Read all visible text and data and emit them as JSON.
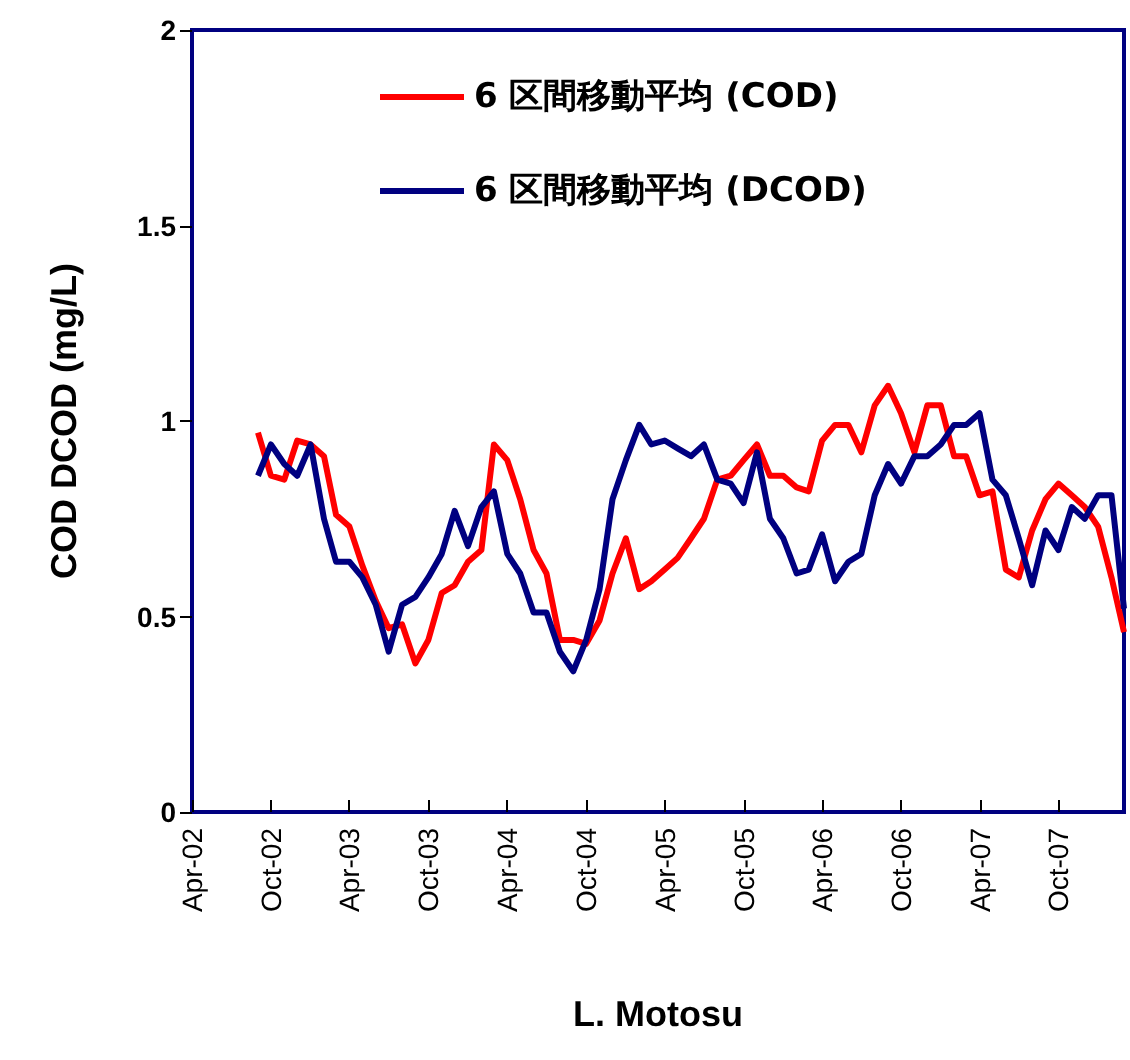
{
  "chart_data": {
    "type": "line",
    "xlabel": "L. Motosu",
    "ylabel": "COD DCOD (mg/L)",
    "x": [
      "2002-09",
      "2002-10",
      "2002-11",
      "2002-12",
      "2003-01",
      "2003-02",
      "2003-03",
      "2003-04",
      "2003-05",
      "2003-06",
      "2003-07",
      "2003-08",
      "2003-09",
      "2003-10",
      "2003-11",
      "2003-12",
      "2004-01",
      "2004-02",
      "2004-03",
      "2004-04",
      "2004-05",
      "2004-06",
      "2004-07",
      "2004-08",
      "2004-09",
      "2004-10",
      "2004-11",
      "2004-12",
      "2005-01",
      "2005-02",
      "2005-03",
      "2005-04",
      "2005-05",
      "2005-06",
      "2005-07",
      "2005-08",
      "2005-09",
      "2005-10",
      "2005-11",
      "2005-12",
      "2006-01",
      "2006-02",
      "2006-03",
      "2006-04",
      "2006-05",
      "2006-06",
      "2006-07",
      "2006-08",
      "2006-09",
      "2006-10",
      "2006-11",
      "2006-12",
      "2007-01",
      "2007-02",
      "2007-03",
      "2007-04",
      "2007-05",
      "2007-06",
      "2007-07",
      "2007-08",
      "2007-09",
      "2007-10",
      "2007-11",
      "2007-12",
      "2008-01",
      "2008-02",
      "2008-03"
    ],
    "series": [
      {
        "name": "6 区間移動平均 (COD)",
        "color": "#ff0000",
        "values": [
          0.97,
          0.86,
          0.85,
          0.95,
          0.94,
          0.91,
          0.76,
          0.73,
          0.63,
          0.54,
          0.47,
          0.48,
          0.38,
          0.44,
          0.56,
          0.58,
          0.64,
          0.67,
          0.94,
          0.9,
          0.8,
          0.67,
          0.61,
          0.44,
          0.44,
          0.43,
          0.49,
          0.61,
          0.7,
          0.57,
          0.59,
          0.62,
          0.65,
          0.7,
          0.75,
          0.85,
          0.86,
          0.9,
          0.94,
          0.86,
          0.86,
          0.83,
          0.82,
          0.95,
          0.99,
          0.99,
          0.92,
          1.04,
          1.09,
          1.02,
          0.92,
          1.04,
          1.04,
          0.91,
          0.91,
          0.81,
          0.82,
          0.62,
          0.6,
          0.72,
          0.8,
          0.84,
          0.81,
          0.78,
          0.73,
          0.6,
          0.46
        ]
      },
      {
        "name": "6 区間移動平均 (DCOD)",
        "color": "#000080",
        "values": [
          0.86,
          0.94,
          0.89,
          0.86,
          0.94,
          0.75,
          0.64,
          0.64,
          0.6,
          0.53,
          0.41,
          0.53,
          0.55,
          0.6,
          0.66,
          0.77,
          0.68,
          0.78,
          0.82,
          0.66,
          0.61,
          0.51,
          0.51,
          0.41,
          0.36,
          0.44,
          0.57,
          0.8,
          0.9,
          0.99,
          0.94,
          0.95,
          0.93,
          0.91,
          0.94,
          0.85,
          0.84,
          0.79,
          0.92,
          0.75,
          0.7,
          0.61,
          0.62,
          0.71,
          0.59,
          0.64,
          0.66,
          0.81,
          0.89,
          0.84,
          0.91,
          0.91,
          0.94,
          0.99,
          0.99,
          1.02,
          0.85,
          0.81,
          0.7,
          0.58,
          0.72,
          0.67,
          0.78,
          0.75,
          0.81,
          0.81,
          0.52
        ]
      }
    ],
    "xlim": [
      "2002-04",
      "2008-03"
    ],
    "xticks": [
      {
        "value": "2002-04",
        "label": "Apr-02"
      },
      {
        "value": "2002-10",
        "label": "Oct-02"
      },
      {
        "value": "2003-04",
        "label": "Apr-03"
      },
      {
        "value": "2003-10",
        "label": "Oct-03"
      },
      {
        "value": "2004-04",
        "label": "Apr-04"
      },
      {
        "value": "2004-10",
        "label": "Oct-04"
      },
      {
        "value": "2005-04",
        "label": "Apr-05"
      },
      {
        "value": "2005-10",
        "label": "Oct-05"
      },
      {
        "value": "2006-04",
        "label": "Apr-06"
      },
      {
        "value": "2006-10",
        "label": "Oct-06"
      },
      {
        "value": "2007-04",
        "label": "Apr-07"
      },
      {
        "value": "2007-10",
        "label": "Oct-07"
      }
    ],
    "ylim": [
      0,
      2
    ],
    "yticks": [
      0,
      0.5,
      1,
      1.5,
      2
    ],
    "grid": false,
    "legend": "top",
    "marker": "none",
    "line_style": "solid"
  }
}
